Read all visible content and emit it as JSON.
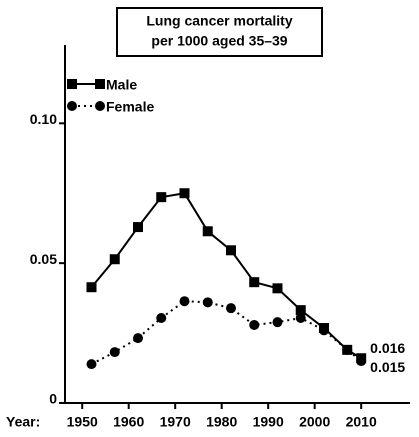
{
  "chart_data": {
    "type": "line",
    "title": [
      "Lung cancer mortality",
      "per 1000 aged 35–39"
    ],
    "x_label": "Year:",
    "x": [
      1952,
      1957,
      1962,
      1967,
      1972,
      1977,
      1982,
      1987,
      1992,
      1997,
      2002,
      2007,
      2010
    ],
    "series": [
      {
        "name": "Male",
        "color": "#000000",
        "marker": "square",
        "dash": "solid",
        "values": [
          0.0414,
          0.0514,
          0.0629,
          0.0736,
          0.075,
          0.0614,
          0.0546,
          0.0432,
          0.041,
          0.0332,
          0.0268,
          0.019,
          0.016
        ],
        "value_labels": [
          null,
          null,
          null,
          null,
          null,
          null,
          null,
          null,
          null,
          null,
          null,
          null,
          "0.016"
        ]
      },
      {
        "name": "Female",
        "color": "#000000",
        "marker": "circle",
        "dash": "dotted",
        "values": [
          0.0139,
          0.0182,
          0.0232,
          0.0304,
          0.0364,
          0.036,
          0.0339,
          0.0279,
          0.0289,
          0.0304,
          0.026,
          0.019,
          0.015
        ],
        "value_labels": [
          null,
          null,
          null,
          null,
          null,
          null,
          null,
          null,
          null,
          null,
          null,
          null,
          "0.015"
        ]
      }
    ],
    "xlim": [
      1946.3,
      2020.5
    ],
    "xticks": [
      1950,
      1960,
      1970,
      1980,
      1990,
      2000,
      2010
    ],
    "ylim": [
      0,
      0.128
    ],
    "yticks": [
      0,
      {
        "value": 0.05,
        "label": "0.05"
      },
      {
        "value": 0.1,
        "label": "0.10"
      }
    ],
    "legend": "top-left",
    "grid": false
  }
}
